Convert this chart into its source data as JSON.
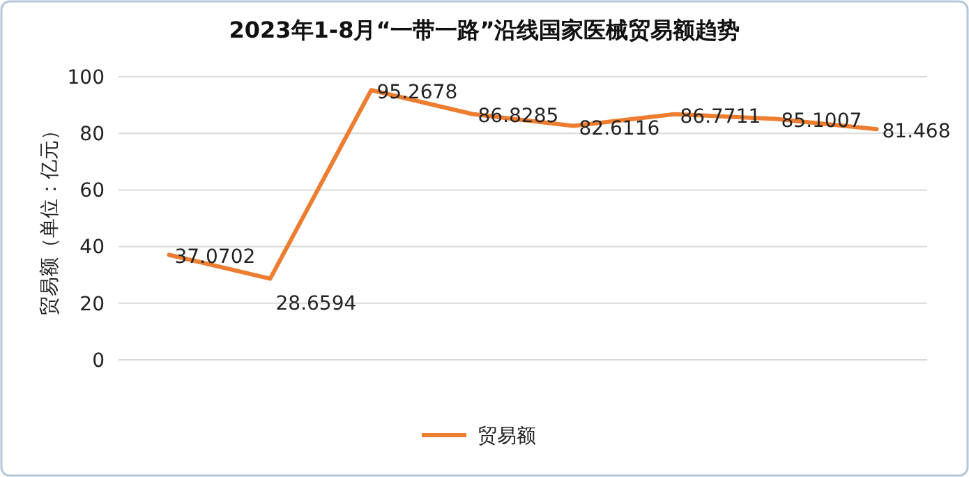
{
  "chart_data": {
    "type": "line",
    "title": "2023年1-8月“一带一路”沿线国家医械贸易额趋势",
    "ylabel": "贸易额（单位：亿元）",
    "categories": [
      null,
      null,
      null,
      null,
      null,
      null,
      null,
      null
    ],
    "series": [
      {
        "name": "贸易额",
        "color": "#ed7d31",
        "values": [
          37.0702,
          28.6594,
          95.2678,
          86.8285,
          82.6116,
          86.7711,
          85.1007,
          81.468
        ]
      }
    ],
    "ylim": [
      0,
      100
    ],
    "yticks": [
      0,
      20,
      40,
      60,
      80,
      100
    ],
    "grid": "y",
    "legend": "bottom",
    "data_labels": true,
    "marker": "none",
    "line_style": "solid"
  }
}
